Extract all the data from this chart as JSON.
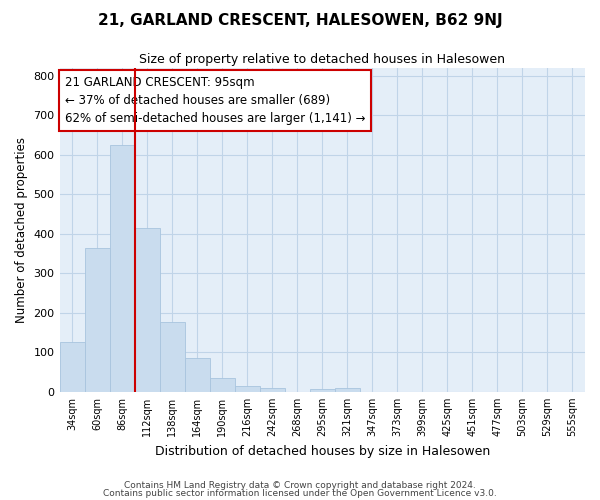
{
  "title_line1": "21, GARLAND CRESCENT, HALESOWEN, B62 9NJ",
  "title_line2": "Size of property relative to detached houses in Halesowen",
  "xlabel": "Distribution of detached houses by size in Halesowen",
  "ylabel": "Number of detached properties",
  "bar_values": [
    125,
    365,
    625,
    415,
    178,
    85,
    35,
    15,
    10,
    0,
    8,
    10,
    0,
    0,
    0,
    0,
    0,
    0,
    0,
    0,
    0
  ],
  "bar_labels": [
    "34sqm",
    "60sqm",
    "86sqm",
    "112sqm",
    "138sqm",
    "164sqm",
    "190sqm",
    "216sqm",
    "242sqm",
    "268sqm",
    "295sqm",
    "321sqm",
    "347sqm",
    "373sqm",
    "399sqm",
    "425sqm",
    "451sqm",
    "477sqm",
    "503sqm",
    "529sqm",
    "555sqm"
  ],
  "bar_color": "#c9dcee",
  "bar_edge_color": "#a8c4de",
  "grid_color": "#c0d4e8",
  "bg_color": "#e4eef8",
  "vline_color": "#cc0000",
  "vline_index": 2.5,
  "annotation_text": "21 GARLAND CRESCENT: 95sqm\n← 37% of detached houses are smaller (689)\n62% of semi-detached houses are larger (1,141) →",
  "annotation_box_color": "#ffffff",
  "annotation_box_edge": "#cc0000",
  "ylim": [
    0,
    820
  ],
  "yticks": [
    0,
    100,
    200,
    300,
    400,
    500,
    600,
    700,
    800
  ],
  "footer_line1": "Contains HM Land Registry data © Crown copyright and database right 2024.",
  "footer_line2": "Contains public sector information licensed under the Open Government Licence v3.0."
}
